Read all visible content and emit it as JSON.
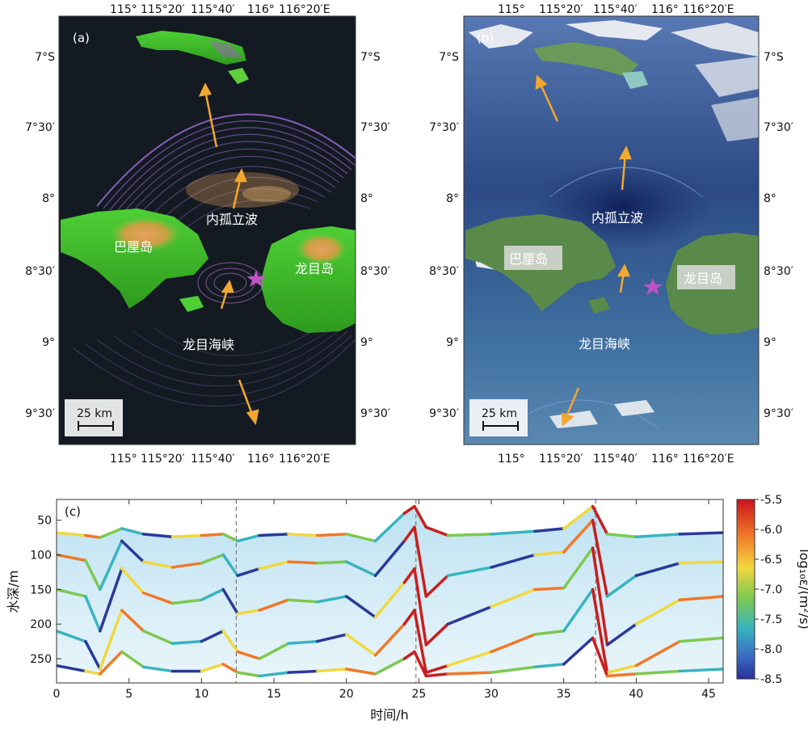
{
  "panel_a": {
    "tag": "(a)",
    "lon_ticks": [
      "115°",
      "115°20′",
      "115°40′",
      "116°",
      "116°20′E"
    ],
    "lat_ticks": [
      "7°S",
      "7°30′",
      "8°",
      "8°30′",
      "9°",
      "9°30′"
    ],
    "labels": {
      "wave": "内孤立波",
      "bali": "巴厘岛",
      "lombok": "龙目岛",
      "strait": "龙目海峡"
    },
    "scale": "25 km",
    "colors": {
      "sea": "#141a22",
      "wave": "#9a6ad0",
      "land_low": "#3fbf2c",
      "land_high": "#d9924a",
      "arrow": "#f2a72e",
      "star": "#c052c8"
    }
  },
  "panel_b": {
    "tag": "(b)",
    "lon_ticks": [
      "115°",
      "115°20′",
      "115°40′",
      "116°",
      "116°20′E"
    ],
    "lat_ticks": [
      "7°S",
      "7°30′",
      "8°",
      "8°30′",
      "9°",
      "9°30′"
    ],
    "labels": {
      "wave": "内孤立波",
      "bali": "巴厘岛",
      "lombok": "龙目岛",
      "strait": "龙目海峡"
    },
    "scale": "25 km",
    "colors": {
      "sea": "#2f4f86",
      "land": "#5a8a4a",
      "cloud": "#f5f5f5",
      "arrow": "#f2a72e",
      "star": "#c052c8"
    }
  },
  "panel_c": {
    "tag": "(c)",
    "ylabel": "水深/m",
    "xlabel": "时间/h",
    "colorbar_label": "log₁₀ε/(m²/s)",
    "x_ticks": [
      "0",
      "5",
      "10",
      "15",
      "20",
      "25",
      "30",
      "35",
      "40",
      "45"
    ],
    "y_ticks": [
      "50",
      "100",
      "150",
      "200",
      "250"
    ],
    "cbar_ticks": [
      "-5.5",
      "-6.0",
      "-6.5",
      "-7.0",
      "-7.5",
      "-8.0",
      "-8.5"
    ],
    "colors": {
      "high": "#c81e1e",
      "mid": "#7ec850",
      "low": "#2a3a9a",
      "fill": "#7fc8e0"
    }
  },
  "chart_data": {
    "type": "line",
    "xlabel": "时间/h",
    "ylabel": "水深/m",
    "x_range": [
      0,
      46
    ],
    "y_range": [
      20,
      285
    ],
    "y_inverted": true,
    "dashed_vertical_lines_h": [
      12.4,
      24.8,
      37.2
    ],
    "colorbar": {
      "label": "log₁₀ε/(m²/s)",
      "range": [
        -8.5,
        -5.5
      ]
    },
    "series": [
      {
        "x": [
          0,
          2,
          3,
          4.5,
          6,
          8,
          10,
          11.5,
          12.5,
          14,
          16,
          18,
          20,
          22,
          24,
          24.7,
          25.5,
          27,
          30,
          33,
          35,
          37,
          38,
          40,
          43,
          46
        ],
        "values": [
          68,
          72,
          75,
          62,
          70,
          74,
          72,
          70,
          80,
          72,
          70,
          72,
          70,
          80,
          40,
          30,
          60,
          72,
          70,
          66,
          62,
          30,
          70,
          74,
          70,
          68
        ]
      },
      {
        "x": [
          0,
          2,
          3,
          4.5,
          6,
          8,
          10,
          11.5,
          12.5,
          14,
          16,
          18,
          20,
          22,
          24,
          24.7,
          25.5,
          27,
          30,
          33,
          35,
          37,
          38,
          40,
          43,
          46
        ],
        "values": [
          100,
          108,
          150,
          80,
          110,
          118,
          112,
          100,
          130,
          120,
          110,
          112,
          110,
          130,
          80,
          60,
          160,
          130,
          118,
          100,
          96,
          50,
          160,
          130,
          112,
          110
        ]
      },
      {
        "x": [
          0,
          2,
          3,
          4.5,
          6,
          8,
          10,
          11.5,
          12.5,
          14,
          16,
          18,
          20,
          22,
          24,
          24.7,
          25.5,
          27,
          30,
          33,
          35,
          37,
          38,
          40,
          43,
          46
        ],
        "values": [
          150,
          160,
          210,
          120,
          155,
          170,
          165,
          150,
          185,
          180,
          165,
          168,
          160,
          190,
          140,
          120,
          230,
          200,
          175,
          150,
          148,
          90,
          230,
          200,
          165,
          160
        ]
      },
      {
        "x": [
          0,
          2,
          3,
          4.5,
          6,
          8,
          10,
          11.5,
          12.5,
          14,
          16,
          18,
          20,
          22,
          24,
          24.7,
          25.5,
          27,
          30,
          33,
          35,
          37,
          38,
          40,
          43,
          46
        ],
        "values": [
          210,
          225,
          265,
          180,
          210,
          228,
          225,
          210,
          240,
          250,
          228,
          225,
          215,
          245,
          200,
          180,
          270,
          260,
          240,
          215,
          210,
          150,
          270,
          260,
          225,
          220
        ]
      },
      {
        "x": [
          0,
          2,
          3,
          4.5,
          6,
          8,
          10,
          11.5,
          12.5,
          14,
          16,
          18,
          20,
          22,
          24,
          24.7,
          25.5,
          27,
          30,
          33,
          35,
          37,
          38,
          40,
          43,
          46
        ],
        "values": [
          260,
          268,
          272,
          240,
          262,
          268,
          268,
          258,
          270,
          275,
          270,
          268,
          265,
          272,
          250,
          240,
          275,
          272,
          270,
          262,
          258,
          220,
          275,
          272,
          268,
          265
        ]
      }
    ]
  }
}
